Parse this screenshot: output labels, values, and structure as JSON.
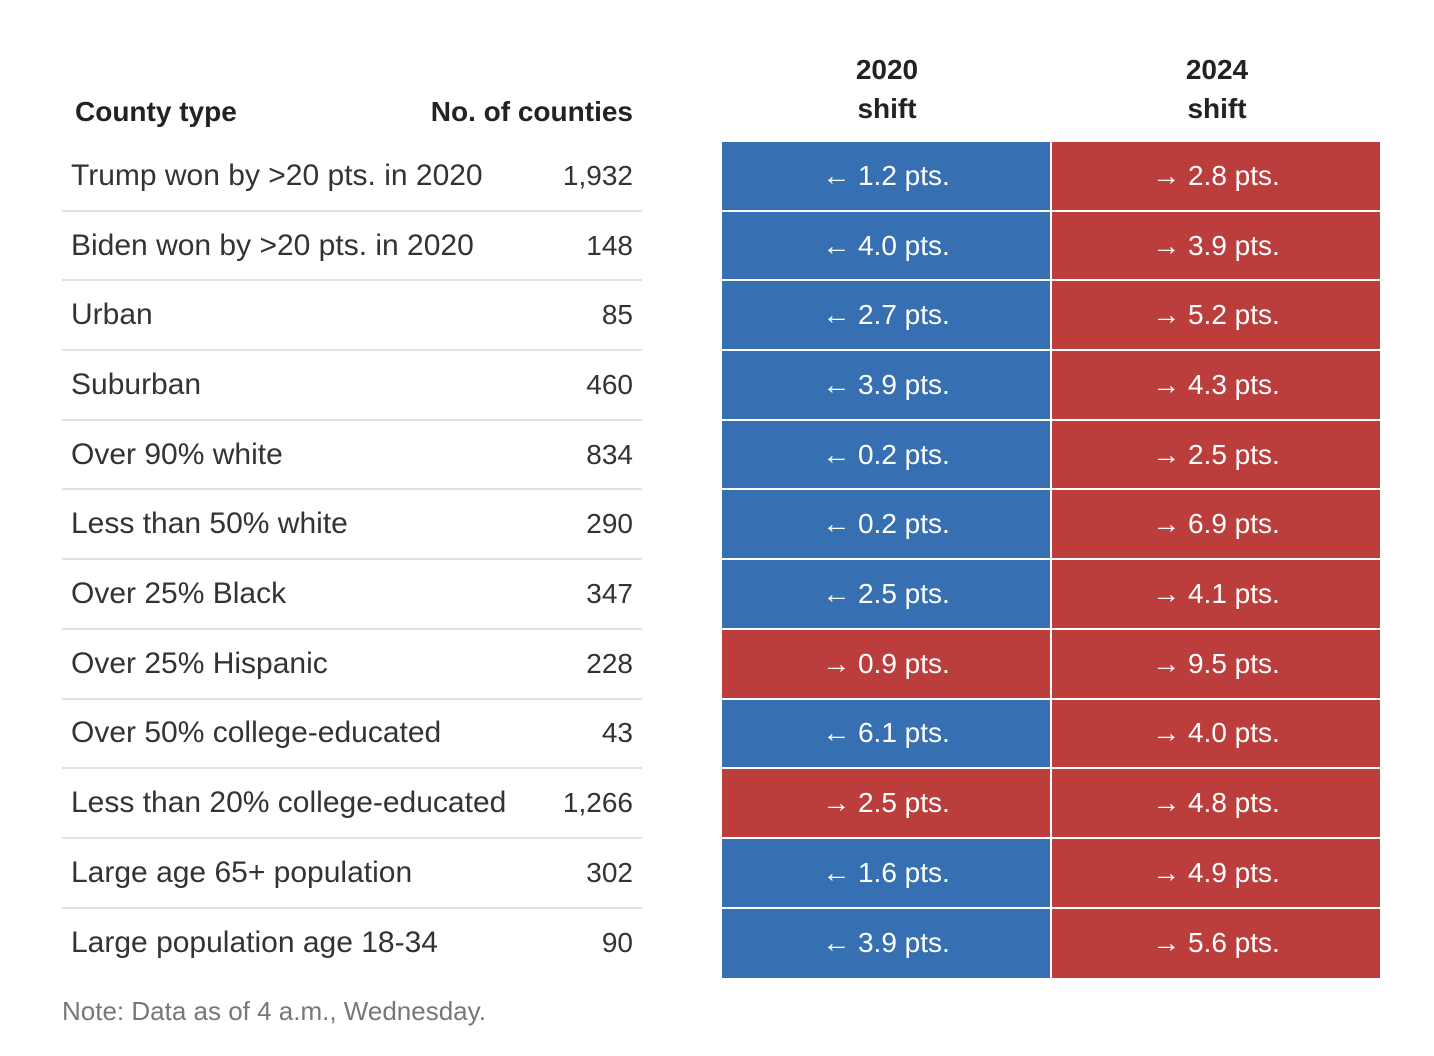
{
  "colors": {
    "dem_shift": "#3670b3",
    "rep_shift": "#bb3d3c"
  },
  "headers": {
    "county_type": "County type",
    "num_counties": "No. of counties",
    "shift_2020_year": "2020",
    "shift_2020_label": "shift",
    "shift_2024_year": "2024",
    "shift_2024_label": "shift"
  },
  "note": "Note: Data as of 4 a.m., Wednesday.",
  "chart_data": {
    "type": "table",
    "columns": [
      "County type",
      "No. of counties",
      "2020 shift",
      "2024 shift"
    ],
    "rows": [
      {
        "county_type": "Trump won by >20 pts. in 2020",
        "counties": "1,932",
        "shift_2020": "← 1.2 pts.",
        "dir_2020": "left",
        "shift_2024": "→ 2.8 pts.",
        "dir_2024": "right"
      },
      {
        "county_type": "Biden won by >20 pts. in 2020",
        "counties": "148",
        "shift_2020": "← 4.0 pts.",
        "dir_2020": "left",
        "shift_2024": "→ 3.9 pts.",
        "dir_2024": "right"
      },
      {
        "county_type": "Urban",
        "counties": "85",
        "shift_2020": "← 2.7 pts.",
        "dir_2020": "left",
        "shift_2024": "→ 5.2 pts.",
        "dir_2024": "right"
      },
      {
        "county_type": "Suburban",
        "counties": "460",
        "shift_2020": "← 3.9 pts.",
        "dir_2020": "left",
        "shift_2024": "→ 4.3 pts.",
        "dir_2024": "right"
      },
      {
        "county_type": "Over 90% white",
        "counties": "834",
        "shift_2020": "← 0.2 pts.",
        "dir_2020": "left",
        "shift_2024": "→ 2.5 pts.",
        "dir_2024": "right"
      },
      {
        "county_type": "Less than 50% white",
        "counties": "290",
        "shift_2020": "← 0.2 pts.",
        "dir_2020": "left",
        "shift_2024": "→ 6.9 pts.",
        "dir_2024": "right"
      },
      {
        "county_type": "Over 25% Black",
        "counties": "347",
        "shift_2020": "← 2.5 pts.",
        "dir_2020": "left",
        "shift_2024": "→ 4.1 pts.",
        "dir_2024": "right"
      },
      {
        "county_type": "Over 25% Hispanic",
        "counties": "228",
        "shift_2020": "→ 0.9 pts.",
        "dir_2020": "right",
        "shift_2024": "→ 9.5 pts.",
        "dir_2024": "right"
      },
      {
        "county_type": "Over 50% college-educated",
        "counties": "43",
        "shift_2020": "← 6.1 pts.",
        "dir_2020": "left",
        "shift_2024": "→ 4.0 pts.",
        "dir_2024": "right"
      },
      {
        "county_type": "Less than 20% college-educated",
        "counties": "1,266",
        "shift_2020": "→ 2.5 pts.",
        "dir_2020": "right",
        "shift_2024": "→ 4.8 pts.",
        "dir_2024": "right"
      },
      {
        "county_type": "Large age 65+ population",
        "counties": "302",
        "shift_2020": "← 1.6 pts.",
        "dir_2020": "left",
        "shift_2024": "→ 4.9 pts.",
        "dir_2024": "right"
      },
      {
        "county_type": "Large population age 18-34",
        "counties": "90",
        "shift_2020": "← 3.9 pts.",
        "dir_2020": "left",
        "shift_2024": "→ 5.6 pts.",
        "dir_2024": "right"
      }
    ]
  }
}
